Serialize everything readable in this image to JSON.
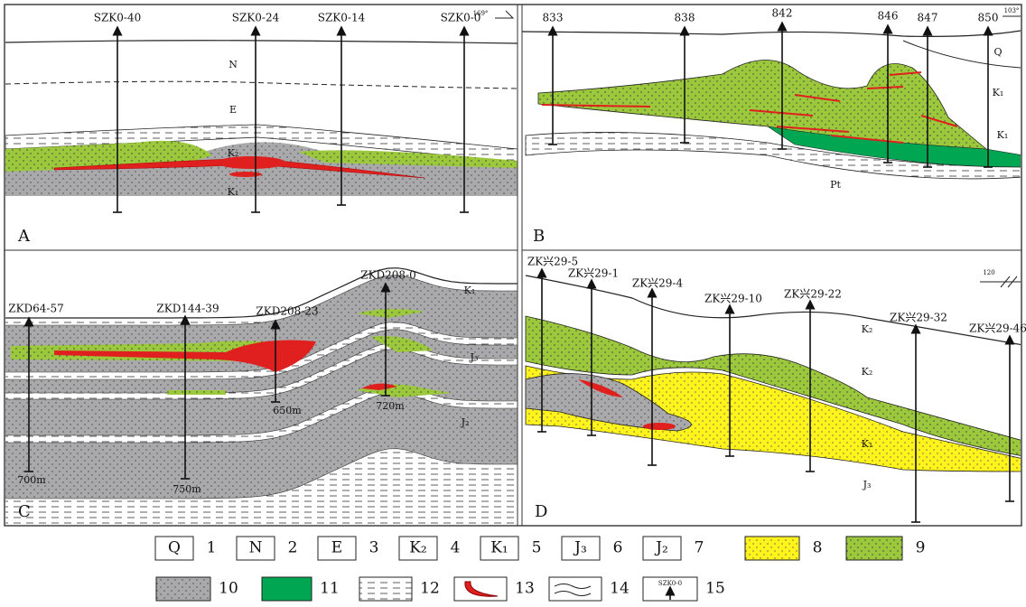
{
  "panels": [
    {
      "label": "A",
      "orientation": "169°",
      "boreholes": [
        {
          "name": "SZK0-40"
        },
        {
          "name": "SZK0-24"
        },
        {
          "name": "SZK0-14"
        },
        {
          "name": "SZK0-0"
        }
      ],
      "strata": [
        "N",
        "E",
        "K₂",
        "K₁"
      ]
    },
    {
      "label": "B",
      "orientation": "103°",
      "boreholes": [
        {
          "name": "833"
        },
        {
          "name": "838"
        },
        {
          "name": "842"
        },
        {
          "name": "846"
        },
        {
          "name": "847"
        },
        {
          "name": "850"
        }
      ],
      "strata": [
        "Q",
        "K₁",
        "K₁",
        "Pt"
      ]
    },
    {
      "label": "C",
      "boreholes": [
        {
          "name": "ZKD64-57",
          "depth": "700m"
        },
        {
          "name": "ZKD144-39",
          "depth": "750m"
        },
        {
          "name": "ZKD208-23",
          "depth": "650m"
        },
        {
          "name": "ZKD208-0",
          "depth": "720m"
        }
      ],
      "strata": [
        "K₁",
        "J₃",
        "J₂"
      ]
    },
    {
      "label": "D",
      "orientation": "120",
      "boreholes": [
        {
          "name": "ZK兴29-5"
        },
        {
          "name": "ZK兴29-1"
        },
        {
          "name": "ZK兴29-4"
        },
        {
          "name": "ZK兴29-10"
        },
        {
          "name": "ZK兴29-22"
        },
        {
          "name": "ZK兴29-32"
        },
        {
          "name": "ZK兴29-46"
        }
      ],
      "strata": [
        "K₂",
        "K₂",
        "K₁",
        "J₃"
      ]
    }
  ],
  "legend": [
    {
      "symbol": "Q",
      "number": "1"
    },
    {
      "symbol": "N",
      "number": "2"
    },
    {
      "symbol": "E",
      "number": "3"
    },
    {
      "symbol": "K₂",
      "number": "4"
    },
    {
      "symbol": "K₁",
      "number": "5"
    },
    {
      "symbol": "J₃",
      "number": "6"
    },
    {
      "symbol": "J₂",
      "number": "7"
    },
    {
      "number": "8"
    },
    {
      "number": "9"
    },
    {
      "number": "10"
    },
    {
      "number": "11"
    },
    {
      "number": "12"
    },
    {
      "number": "13"
    },
    {
      "number": "14"
    },
    {
      "symbol": "SZK0-0",
      "number": "15"
    }
  ]
}
